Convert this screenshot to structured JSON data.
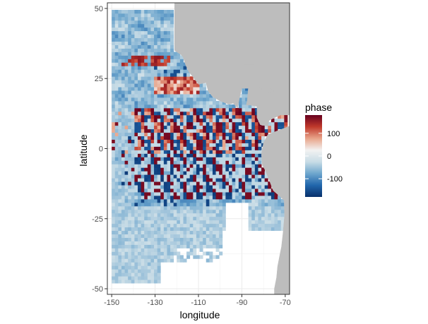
{
  "chart_data": {
    "type": "heatmap",
    "title": "",
    "xlabel": "longitude",
    "ylabel": "latitude",
    "xlim": [
      -152,
      -68
    ],
    "ylim": [
      -52,
      52
    ],
    "x_ticks": [
      -150,
      -130,
      -110,
      -90,
      -70
    ],
    "y_ticks": [
      -50,
      -25,
      0,
      25,
      50
    ],
    "x_tick_labels": [
      "-150",
      "-130",
      "-110",
      "-90",
      "-70"
    ],
    "y_tick_labels": [
      "-50",
      "-25",
      "0",
      "25",
      "50"
    ],
    "grid": true,
    "legend": {
      "title": "phase",
      "placement": "right",
      "range": [
        -180,
        180
      ],
      "breaks": [
        100,
        0,
        -100
      ],
      "break_labels": [
        "100",
        "0",
        "-100"
      ],
      "colors": [
        "#08306b",
        "#2166ac",
        "#6ea6cd",
        "#c8dce6",
        "#f2f2f2",
        "#e8a48a",
        "#c0392b",
        "#67001f"
      ]
    },
    "land_color": "#bdbdbd",
    "ocean_base_color": "#b7d0dc"
  }
}
